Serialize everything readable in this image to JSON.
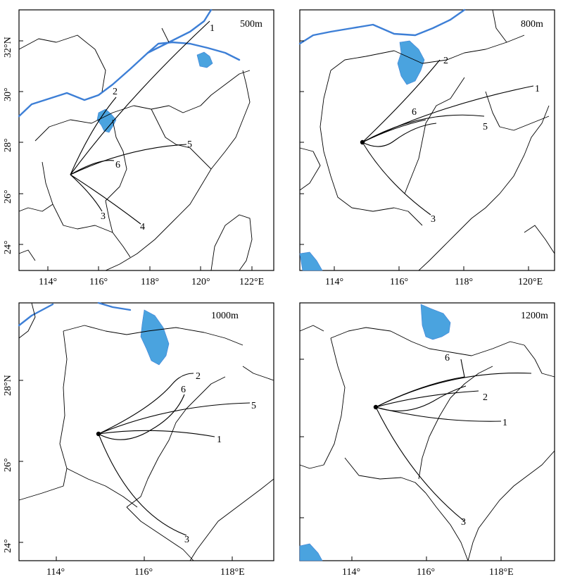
{
  "panels": [
    {
      "height_label": "500m",
      "y_tick_labels": [
        "32°N",
        "30°",
        "28°",
        "26°",
        "24°"
      ],
      "x_tick_labels": [
        "114°",
        "116°",
        "118°",
        "120°",
        "122°E"
      ],
      "trajectory_labels": [
        "1",
        "2",
        "3",
        "4",
        "5",
        "6"
      ]
    },
    {
      "height_label": "800m",
      "y_tick_labels": [],
      "x_tick_labels": [
        "114°",
        "116°",
        "118°",
        "120°E"
      ],
      "trajectory_labels": [
        "1",
        "2",
        "3",
        "5",
        "6"
      ]
    },
    {
      "height_label": "1000m",
      "y_tick_labels": [
        "28°N",
        "26°",
        "24°"
      ],
      "x_tick_labels": [
        "114°",
        "116°",
        "118°E"
      ],
      "trajectory_labels": [
        "1",
        "2",
        "3",
        "5",
        "6"
      ]
    },
    {
      "height_label": "1200m",
      "y_tick_labels": [],
      "x_tick_labels": [
        "114°",
        "116°",
        "118°E"
      ],
      "trajectory_labels": [
        "1",
        "2",
        "3",
        "6"
      ]
    }
  ],
  "colors": {
    "water": "#4aa3df",
    "river": "#3d7fd6",
    "lines": "#000000"
  }
}
